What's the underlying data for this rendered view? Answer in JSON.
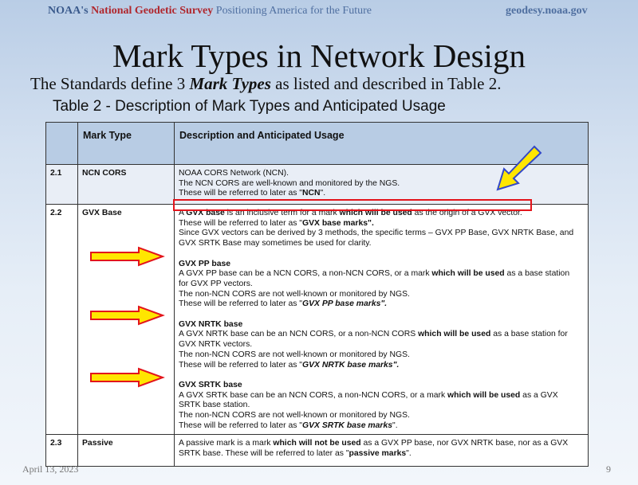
{
  "header": {
    "org": "NOAA's",
    "agency": "National Geodetic Survey",
    "tagline": "Positioning America for the Future",
    "website": "geodesy.noaa.gov"
  },
  "slide": {
    "title": "Mark Types in Network Design",
    "subtitle_pre": "The Standards define 3 ",
    "subtitle_em": "Mark Types",
    "subtitle_post": " as listed and described in Table 2.",
    "table_caption": "Table 2 - Description of Mark Types and Anticipated Usage"
  },
  "table": {
    "headers": [
      "",
      "Mark Type",
      "Description and Anticipated Usage"
    ],
    "rows": [
      {
        "num": "2.1",
        "type": "NCN CORS",
        "lines": [
          [
            {
              "t": "NOAA CORS Network (NCN)."
            }
          ],
          [
            {
              "t": "The NCN CORS are well-known and monitored by the NGS."
            }
          ],
          [
            {
              "t": "These will be referred to later as \""
            },
            {
              "t": "NCN",
              "b": true
            },
            {
              "t": "\"."
            }
          ]
        ]
      },
      {
        "num": "2.2",
        "type": "GVX Base",
        "lines": [
          [
            {
              "t": "A "
            },
            {
              "t": "GVX base",
              "b": true
            },
            {
              "t": " is an inclusive term for a mark "
            },
            {
              "t": "which will be used",
              "b": true
            },
            {
              "t": " as the origin of a GVX vector."
            }
          ],
          [
            {
              "t": "These will be referred to later as \""
            },
            {
              "t": "GVX base marks\".",
              "b": true
            }
          ],
          [
            {
              "t": "Since GVX vectors can be derived by 3 methods, the specific terms – GVX PP Base, GVX NRTK Base, and"
            }
          ],
          [
            {
              "t": "GVX SRTK Base may sometimes be used for clarity."
            }
          ],
          [],
          [
            {
              "t": "GVX PP base",
              "b": true
            }
          ],
          [
            {
              "t": "A GVX PP base can be a NCN CORS, a non-NCN CORS, or a mark "
            },
            {
              "t": "which will be used",
              "b": true
            },
            {
              "t": " as a base station"
            }
          ],
          [
            {
              "t": "for GVX PP vectors."
            }
          ],
          [
            {
              "t": "The non-NCN CORS are not well-known or monitored by NGS."
            }
          ],
          [
            {
              "t": "These will be referred to later as \""
            },
            {
              "t": "GVX PP base marks\".",
              "b": true,
              "i": true
            }
          ],
          [],
          [
            {
              "t": "GVX NRTK base",
              "b": true
            }
          ],
          [
            {
              "t": "A GVX NRTK base can be an NCN CORS, or a non-NCN CORS "
            },
            {
              "t": "which will be used",
              "b": true
            },
            {
              "t": " as a base station for"
            }
          ],
          [
            {
              "t": "GVX NRTK vectors."
            }
          ],
          [
            {
              "t": "The non-NCN CORS are not well-known or monitored by NGS."
            }
          ],
          [
            {
              "t": "These will be referred to later as \""
            },
            {
              "t": "GVX NRTK base marks\".",
              "b": true,
              "i": true
            }
          ],
          [],
          [
            {
              "t": "GVX SRTK base",
              "b": true
            }
          ],
          [
            {
              "t": "A GVX SRTK base can be an NCN CORS, a non-NCN CORS, or a mark "
            },
            {
              "t": "which will be used",
              "b": true
            },
            {
              "t": " as a GVX"
            }
          ],
          [
            {
              "t": "SRTK base station."
            }
          ],
          [
            {
              "t": "The non-NCN CORS are not well-known or monitored by NGS."
            }
          ],
          [
            {
              "t": "These will be referred to later as \""
            },
            {
              "t": "GVX SRTK base marks",
              "b": true,
              "i": true
            },
            {
              "t": "\"."
            }
          ]
        ]
      },
      {
        "num": "2.3",
        "type": "Passive",
        "lines": [
          [
            {
              "t": "A passive mark is a mark "
            },
            {
              "t": "which will not be used",
              "b": true
            },
            {
              "t": " as a GVX PP base, nor GVX NRTK base, nor as a GVX"
            }
          ],
          [
            {
              "t": "SRTK base.  These will be referred to later as \""
            },
            {
              "t": "passive marks",
              "b": true
            },
            {
              "t": "\"."
            }
          ]
        ]
      }
    ]
  },
  "footer": {
    "date": "April 13, 2023",
    "page": "9"
  },
  "colors": {
    "header_row": "#b8cce4",
    "highlight_box": "#e3141b",
    "arrow_fill": "#ffe600",
    "arrow_outline_red": "#e3141b",
    "arrow_outline_blue": "#3348c8"
  }
}
